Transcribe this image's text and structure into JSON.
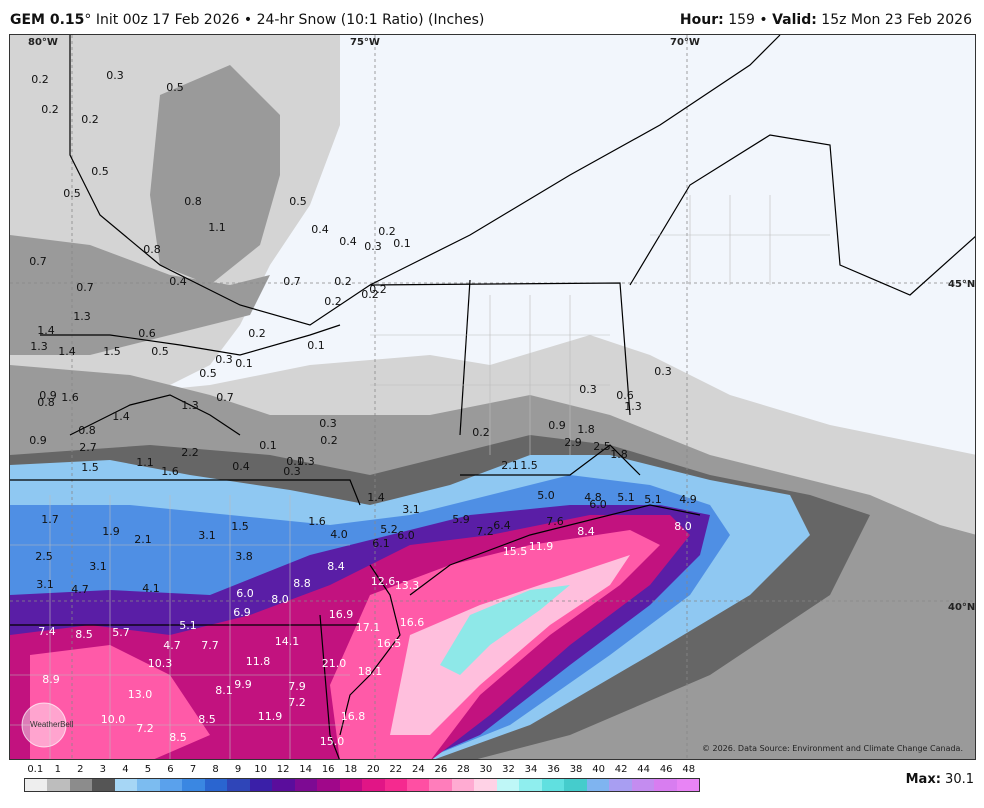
{
  "header": {
    "model": "GEM 0.15",
    "model_deg": "°",
    "init": "Init 00z 17 Feb 2026",
    "sep": "•",
    "product": "24-hr Snow (10:1 Ratio) (Inches)",
    "hour_label": "Hour:",
    "hour": "159",
    "valid_label": "Valid:",
    "valid": "15z Mon 23 Feb 2026"
  },
  "grid_labels": {
    "lon80": "80°W",
    "lon75": "75°W",
    "lon70": "70°W",
    "lat45": "45°N",
    "lat40": "40°N"
  },
  "colorbar": {
    "ticks": [
      "0.1",
      "1",
      "2",
      "3",
      "4",
      "5",
      "6",
      "7",
      "8",
      "9",
      "10",
      "12",
      "14",
      "16",
      "18",
      "20",
      "22",
      "24",
      "26",
      "28",
      "30",
      "32",
      "34",
      "36",
      "38",
      "40",
      "42",
      "44",
      "46",
      "48"
    ],
    "colors": [
      "#eeeeee",
      "#bdbdbd",
      "#8c8c8c",
      "#555555",
      "#a6d6f5",
      "#7cbcf0",
      "#5aa1ec",
      "#3a87e2",
      "#2a65d0",
      "#2f45b8",
      "#3a1fa8",
      "#5a0d9c",
      "#7d0a93",
      "#a0078a",
      "#c20a86",
      "#e11586",
      "#f52a8f",
      "#ff4fa3",
      "#ff7dbb",
      "#ffabd2",
      "#ffd2e6",
      "#bff7f7",
      "#8feeee",
      "#60e0e0",
      "#45cccc",
      "#7fb4f0",
      "#a89ef2",
      "#c48cf0",
      "#d87df0",
      "#e884f5"
    ]
  },
  "max": {
    "label": "Max:",
    "value": "30.1"
  },
  "copyright": "© 2026. Data Source: Environment and Climate Change Canada.",
  "watermark": "WeatherBell",
  "values": [
    {
      "t": "0.2",
      "c": "d"
    },
    {
      "t": "0.3",
      "c": "d"
    },
    {
      "t": "0.2",
      "c": "d"
    },
    {
      "t": "0.2",
      "c": "d"
    },
    {
      "t": "0.5",
      "c": "d"
    },
    {
      "t": "0.5",
      "c": "d"
    },
    {
      "t": "0.5",
      "c": "d"
    },
    {
      "t": "0.8",
      "c": "d"
    },
    {
      "t": "0.5",
      "c": "d"
    },
    {
      "t": "1.1",
      "c": "d"
    },
    {
      "t": "0.4",
      "c": "d"
    },
    {
      "t": "0.8",
      "c": "d"
    },
    {
      "t": "0.4",
      "c": "d"
    },
    {
      "t": "0.3",
      "c": "d"
    },
    {
      "t": "0.2",
      "c": "d"
    },
    {
      "t": "0.1",
      "c": "d"
    },
    {
      "t": "0.7",
      "c": "d"
    },
    {
      "t": "0.4",
      "c": "d"
    },
    {
      "t": "0.7",
      "c": "d"
    },
    {
      "t": "0.2",
      "c": "d"
    },
    {
      "t": "0.7",
      "c": "d"
    },
    {
      "t": "0.2",
      "c": "d"
    },
    {
      "t": "1.3",
      "c": "d"
    },
    {
      "t": "1.4",
      "c": "d"
    },
    {
      "t": "0.6",
      "c": "d"
    },
    {
      "t": "0.2",
      "c": "d"
    },
    {
      "t": "1.3",
      "c": "d"
    },
    {
      "t": "1.4",
      "c": "d"
    },
    {
      "t": "1.5",
      "c": "d"
    },
    {
      "t": "0.5",
      "c": "d"
    },
    {
      "t": "0.3",
      "c": "d"
    },
    {
      "t": "0.1",
      "c": "d"
    },
    {
      "t": "0.1",
      "c": "d"
    },
    {
      "t": "0.5",
      "c": "d"
    },
    {
      "t": "0.9",
      "c": "d"
    },
    {
      "t": "0.8",
      "c": "d"
    },
    {
      "t": "1.6",
      "c": "d"
    },
    {
      "t": "1.3",
      "c": "d"
    },
    {
      "t": "0.7",
      "c": "d"
    },
    {
      "t": "1.4",
      "c": "d"
    },
    {
      "t": "0.8",
      "c": "d"
    },
    {
      "t": "0.9",
      "c": "d"
    },
    {
      "t": "2.7",
      "c": "d"
    },
    {
      "t": "2.2",
      "c": "d"
    },
    {
      "t": "0.3",
      "c": "d"
    },
    {
      "t": "0.1",
      "c": "d"
    },
    {
      "t": "0.2",
      "c": "d"
    },
    {
      "t": "1.5",
      "c": "d"
    },
    {
      "t": "1.1",
      "c": "d"
    },
    {
      "t": "1.6",
      "c": "d"
    },
    {
      "t": "0.4",
      "c": "d"
    },
    {
      "t": "0.1",
      "c": "d"
    },
    {
      "t": "0.3",
      "c": "d"
    },
    {
      "t": "0.3",
      "c": "d"
    },
    {
      "t": "0.2",
      "c": "d"
    },
    {
      "t": "0.2",
      "c": "d"
    },
    {
      "t": "0.3",
      "c": "d"
    },
    {
      "t": "0.6",
      "c": "d"
    },
    {
      "t": "0.3",
      "c": "d"
    },
    {
      "t": "1.3",
      "c": "d"
    },
    {
      "t": "0.9",
      "c": "d"
    },
    {
      "t": "1.8",
      "c": "d"
    },
    {
      "t": "2.9",
      "c": "d"
    },
    {
      "t": "2.5",
      "c": "d"
    },
    {
      "t": "1.8",
      "c": "d"
    },
    {
      "t": "0.2",
      "c": "d"
    },
    {
      "t": "2.1",
      "c": "d"
    },
    {
      "t": "1.5",
      "c": "d"
    },
    {
      "t": "1.4",
      "c": "d"
    },
    {
      "t": "3.1",
      "c": "d"
    },
    {
      "t": "1.6",
      "c": "d"
    },
    {
      "t": "1.7",
      "c": "d"
    },
    {
      "t": "1.9",
      "c": "d"
    },
    {
      "t": "2.1",
      "c": "d"
    },
    {
      "t": "3.1",
      "c": "d"
    },
    {
      "t": "1.5",
      "c": "d"
    },
    {
      "t": "4.0",
      "c": "d"
    },
    {
      "t": "5.2",
      "c": "d"
    },
    {
      "t": "6.0",
      "c": "d"
    },
    {
      "t": "6.1",
      "c": "d"
    },
    {
      "t": "5.9",
      "c": "d"
    },
    {
      "t": "7.2",
      "c": "d"
    },
    {
      "t": "6.4",
      "c": "d"
    },
    {
      "t": "5.0",
      "c": "d"
    },
    {
      "t": "7.6",
      "c": "d"
    },
    {
      "t": "4.8",
      "c": "d"
    },
    {
      "t": "6.0",
      "c": "d"
    },
    {
      "t": "5.1",
      "c": "d"
    },
    {
      "t": "5.1",
      "c": "d"
    },
    {
      "t": "4.9",
      "c": "d"
    },
    {
      "t": "8.4",
      "c": "w"
    },
    {
      "t": "8.0",
      "c": "w"
    },
    {
      "t": "15.5",
      "c": "w"
    },
    {
      "t": "11.9",
      "c": "w"
    },
    {
      "t": "2.5",
      "c": "d"
    },
    {
      "t": "3.1",
      "c": "d"
    },
    {
      "t": "3.1",
      "c": "d"
    },
    {
      "t": "3.8",
      "c": "d"
    },
    {
      "t": "4.7",
      "c": "d"
    },
    {
      "t": "4.1",
      "c": "d"
    },
    {
      "t": "8.4",
      "c": "w"
    },
    {
      "t": "8.8",
      "c": "w"
    },
    {
      "t": "12.6",
      "c": "w"
    },
    {
      "t": "13.3",
      "c": "w"
    },
    {
      "t": "6.0",
      "c": "w"
    },
    {
      "t": "8.0",
      "c": "w"
    },
    {
      "t": "6.9",
      "c": "w"
    },
    {
      "t": "16.9",
      "c": "w"
    },
    {
      "t": "17.1",
      "c": "w"
    },
    {
      "t": "16.6",
      "c": "w"
    },
    {
      "t": "7.4",
      "c": "w"
    },
    {
      "t": "8.5",
      "c": "w"
    },
    {
      "t": "5.7",
      "c": "w"
    },
    {
      "t": "5.1",
      "c": "w"
    },
    {
      "t": "4.7",
      "c": "w"
    },
    {
      "t": "7.7",
      "c": "w"
    },
    {
      "t": "14.1",
      "c": "w"
    },
    {
      "t": "16.5",
      "c": "w"
    },
    {
      "t": "10.3",
      "c": "w"
    },
    {
      "t": "11.8",
      "c": "w"
    },
    {
      "t": "21.0",
      "c": "w"
    },
    {
      "t": "18.1",
      "c": "w"
    },
    {
      "t": "8.9",
      "c": "w"
    },
    {
      "t": "13.0",
      "c": "w"
    },
    {
      "t": "8.1",
      "c": "w"
    },
    {
      "t": "9.9",
      "c": "w"
    },
    {
      "t": "7.9",
      "c": "w"
    },
    {
      "t": "7.2",
      "c": "w"
    },
    {
      "t": "10.0",
      "c": "w"
    },
    {
      "t": "7.2",
      "c": "w"
    },
    {
      "t": "8.5",
      "c": "w"
    },
    {
      "t": "11.9",
      "c": "w"
    },
    {
      "t": "16.8",
      "c": "w"
    },
    {
      "t": "8.5",
      "c": "w"
    },
    {
      "t": "15.0",
      "c": "w"
    }
  ]
}
